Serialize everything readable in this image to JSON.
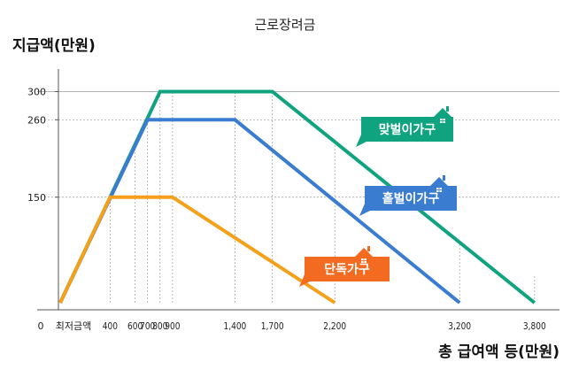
{
  "chart_data": {
    "type": "line",
    "title": "근로장려금",
    "ylabel": "지급액(만원)",
    "xlabel": "총 급여액 등(만원)",
    "origin_label": "0",
    "min_label": "최저금액",
    "x_ticks": [
      {
        "value": 400,
        "label": "400"
      },
      {
        "value": 600,
        "label": "600"
      },
      {
        "value": 700,
        "label": "700"
      },
      {
        "value": 800,
        "label": "800"
      },
      {
        "value": 900,
        "label": "900"
      },
      {
        "value": 1400,
        "label": "1,400"
      },
      {
        "value": 1700,
        "label": "1,700"
      },
      {
        "value": 2200,
        "label": "2,200"
      },
      {
        "value": 3200,
        "label": "3,200"
      },
      {
        "value": 3800,
        "label": "3,800"
      }
    ],
    "y_ticks": [
      {
        "value": 150,
        "label": "150"
      },
      {
        "value": 260,
        "label": "260"
      },
      {
        "value": 300,
        "label": "300"
      }
    ],
    "series": [
      {
        "name": "맞벌이가구",
        "color": "#0fa37f",
        "points": [
          [
            0,
            0
          ],
          [
            800,
            300
          ],
          [
            1700,
            300
          ],
          [
            3800,
            0
          ]
        ]
      },
      {
        "name": "홑벌이가구",
        "color": "#3a7ccf",
        "points": [
          [
            0,
            0
          ],
          [
            700,
            260
          ],
          [
            1400,
            260
          ],
          [
            3200,
            0
          ]
        ]
      },
      {
        "name": "단독가구",
        "color": "#f4a018",
        "points": [
          [
            0,
            0
          ],
          [
            400,
            150
          ],
          [
            900,
            150
          ],
          [
            2200,
            0
          ]
        ]
      }
    ],
    "label_colors": {
      "맞벌이가구": "#0fa37f",
      "홑벌이가구": "#3a7ccf",
      "단독가구": "#f26b21"
    },
    "icon": "house-icon",
    "grid": "dotted guides at breakpoints"
  }
}
